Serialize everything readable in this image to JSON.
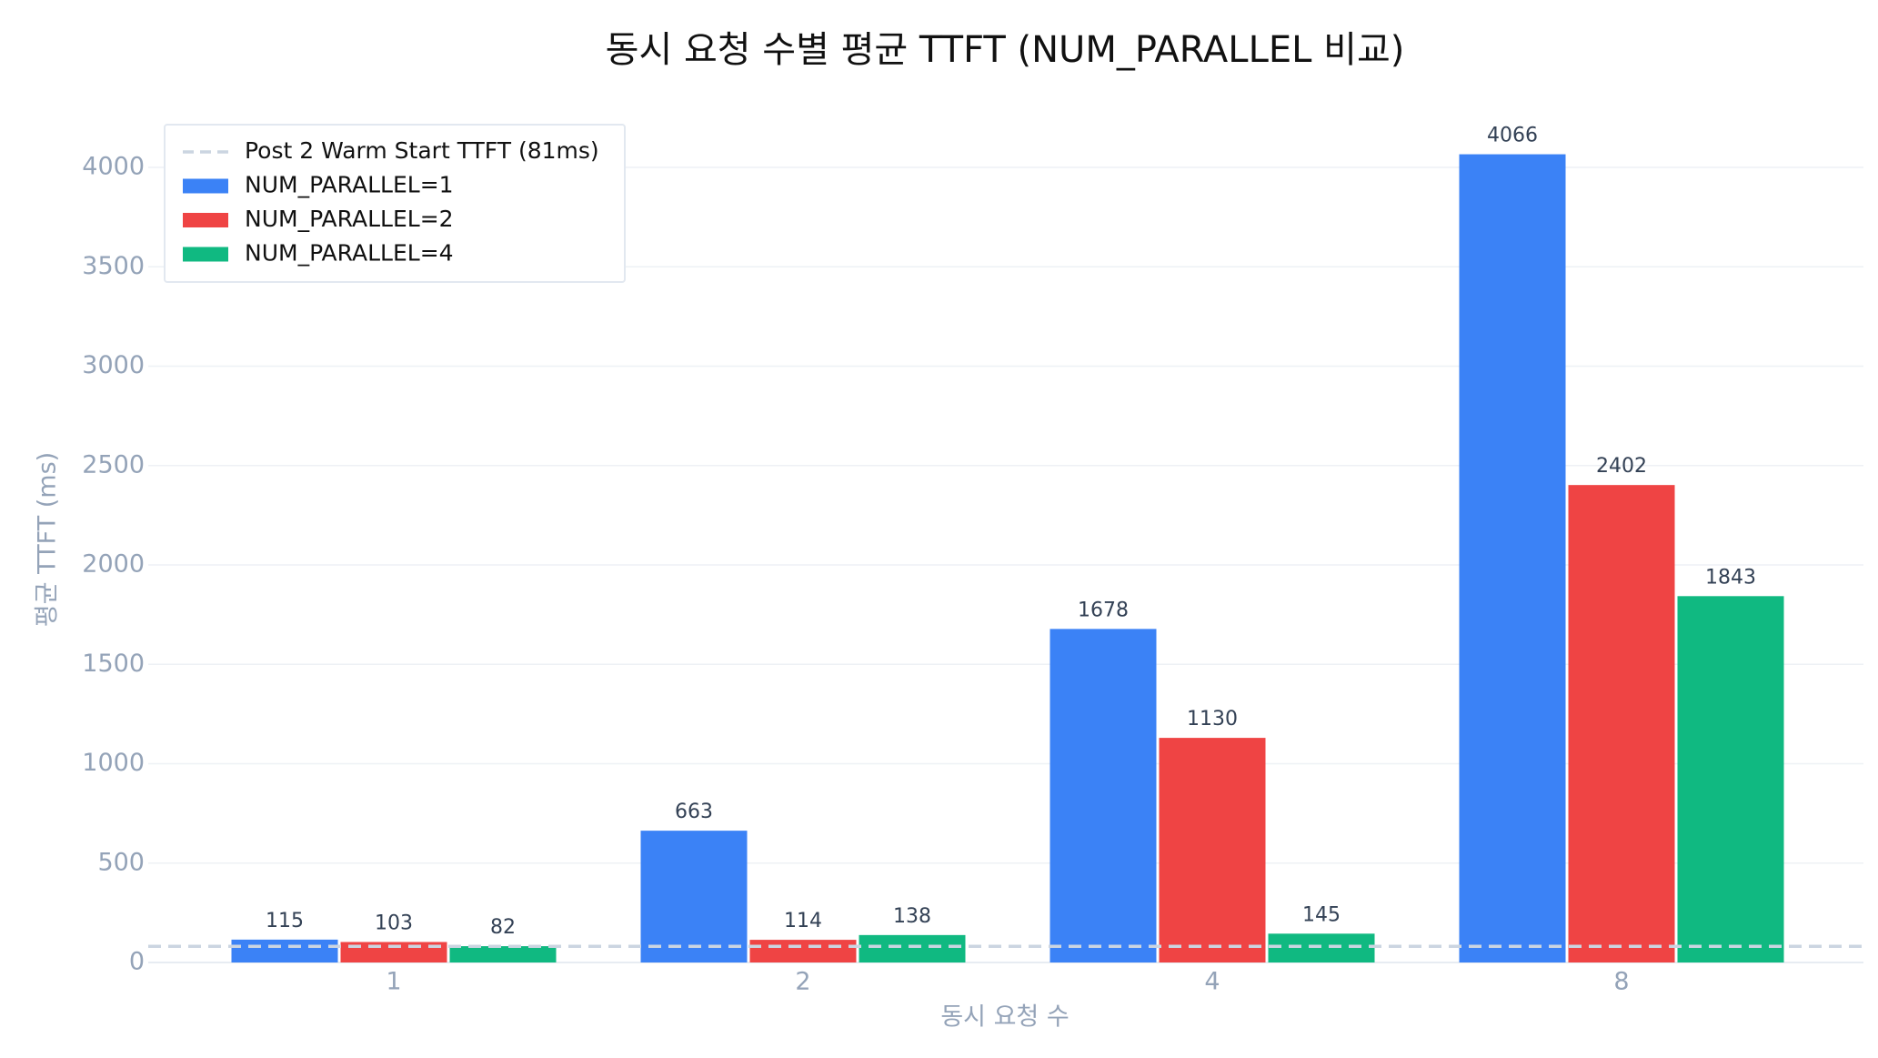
{
  "chart_data": {
    "type": "bar",
    "title": "동시 요청 수별 평균 TTFT (NUM_PARALLEL 비교)",
    "x_label": "동시 요청 수",
    "y_label": "평균 TTFT (ms)",
    "categories": [
      "1",
      "2",
      "4",
      "8"
    ],
    "series": [
      {
        "name": "NUM_PARALLEL=1",
        "color": "#3b82f6",
        "values": [
          115,
          663,
          1678,
          4066
        ]
      },
      {
        "name": "NUM_PARALLEL=2",
        "color": "#ef4444",
        "values": [
          103,
          114,
          1130,
          2402
        ]
      },
      {
        "name": "NUM_PARALLEL=4",
        "color": "#10b981",
        "values": [
          82,
          138,
          145,
          1843
        ]
      }
    ],
    "reference_line": {
      "name": "Post 2 Warm Start TTFT (81ms)",
      "value": 81,
      "color": "#cbd5e1"
    },
    "ylim": [
      0,
      4200
    ],
    "yticks": [
      0,
      500,
      1000,
      1500,
      2000,
      2500,
      3000,
      3500,
      4000
    ],
    "grid": true,
    "legend": "top-left"
  }
}
